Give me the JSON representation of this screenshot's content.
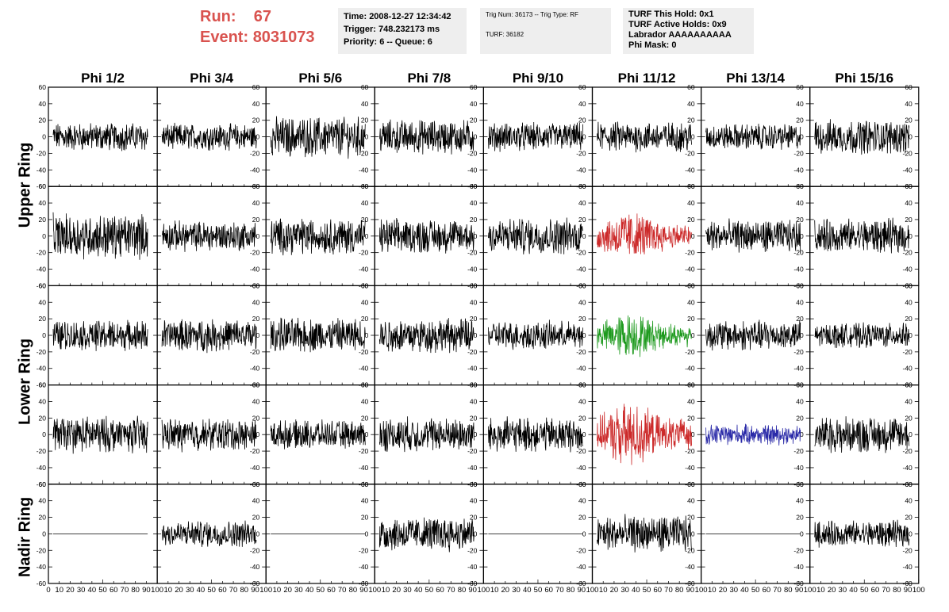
{
  "run": {
    "run_label": "Run:",
    "run_value": "67",
    "event_label": "Event:",
    "event_value": "8031073"
  },
  "info1": {
    "time": "Time: 2008-12-27 12:34:42",
    "trigger": "Trigger: 748.232173 ms",
    "priority": "Priority: 6 -- Queue: 6"
  },
  "info2": {
    "trig": "Trig Num: 36173 -- Trig Type: RF",
    "turf": "TURF: 36182"
  },
  "info3": {
    "hold": "TURF This Hold: 0x1",
    "active": "TURF Active Holds: 0x9",
    "labrador": "Labrador AAAAAAAAAA",
    "phimask": "Phi Mask: 0"
  },
  "rings": {
    "upper": "Upper Ring",
    "lower": "Lower Ring",
    "nadir": "Nadir Ring"
  },
  "colors": {
    "trace": "#000000",
    "red": "#cc2a2a",
    "green": "#1e9a1e",
    "blue": "#2a2aa8",
    "header_text": "#d9534f",
    "box_bg": "#eeeeee"
  },
  "chart_data": {
    "type": "line",
    "columns": [
      "Phi 1/2",
      "Phi 3/4",
      "Phi 5/6",
      "Phi 7/8",
      "Phi 9/10",
      "Phi 11/12",
      "Phi 13/14",
      "Phi 15/16"
    ],
    "ylim": [
      -60,
      60
    ],
    "xlim": [
      0,
      100
    ],
    "y_ticks": [
      -60,
      -40,
      -20,
      0,
      20,
      40,
      60
    ],
    "x_ticks": [
      0,
      10,
      20,
      30,
      40,
      50,
      60,
      70,
      80,
      90,
      100
    ],
    "y_tick_labels": [
      "-60",
      "-40",
      "-20",
      "0",
      "20",
      "40",
      "60"
    ],
    "x_tick_labels": [
      "0",
      "10",
      "20",
      "30",
      "40",
      "50",
      "60",
      "70",
      "80",
      "90",
      "100"
    ],
    "rows": [
      {
        "ring": "upper",
        "panels": [
          {
            "amp": 14,
            "color": "black"
          },
          {
            "amp": 13,
            "color": "black"
          },
          {
            "amp": 20,
            "color": "black"
          },
          {
            "amp": 17,
            "color": "black"
          },
          {
            "amp": 14,
            "color": "black"
          },
          {
            "amp": 15,
            "color": "black"
          },
          {
            "amp": 13,
            "color": "black"
          },
          {
            "amp": 17,
            "color": "black"
          }
        ]
      },
      {
        "ring": "upper",
        "panels": [
          {
            "amp": 22,
            "color": "black"
          },
          {
            "amp": 15,
            "color": "black"
          },
          {
            "amp": 18,
            "color": "black"
          },
          {
            "amp": 17,
            "color": "black"
          },
          {
            "amp": 18,
            "color": "black"
          },
          {
            "amp": 19,
            "color": "red"
          },
          {
            "amp": 16,
            "color": "black"
          },
          {
            "amp": 17,
            "color": "black"
          }
        ]
      },
      {
        "ring": "lower",
        "panels": [
          {
            "amp": 15,
            "color": "black"
          },
          {
            "amp": 16,
            "color": "black"
          },
          {
            "amp": 17,
            "color": "black"
          },
          {
            "amp": 17,
            "color": "black"
          },
          {
            "amp": 14,
            "color": "black"
          },
          {
            "amp": 17,
            "color": "green"
          },
          {
            "amp": 15,
            "color": "black"
          },
          {
            "amp": 12,
            "color": "black"
          }
        ]
      },
      {
        "ring": "lower",
        "panels": [
          {
            "amp": 18,
            "color": "black"
          },
          {
            "amp": 16,
            "color": "black"
          },
          {
            "amp": 14,
            "color": "black"
          },
          {
            "amp": 17,
            "color": "black"
          },
          {
            "amp": 17,
            "color": "black"
          },
          {
            "amp": 24,
            "color": "red"
          },
          {
            "amp": 10,
            "color": "blue"
          },
          {
            "amp": 18,
            "color": "black"
          }
        ]
      },
      {
        "ring": "nadir",
        "panels": [
          {
            "amp": 0,
            "color": "black"
          },
          {
            "amp": 13,
            "color": "black"
          },
          {
            "amp": 0,
            "color": "black"
          },
          {
            "amp": 17,
            "color": "black"
          },
          {
            "amp": 0,
            "color": "black"
          },
          {
            "amp": 18,
            "color": "black"
          },
          {
            "amp": 0,
            "color": "black"
          },
          {
            "amp": 13,
            "color": "black"
          }
        ]
      }
    ]
  }
}
